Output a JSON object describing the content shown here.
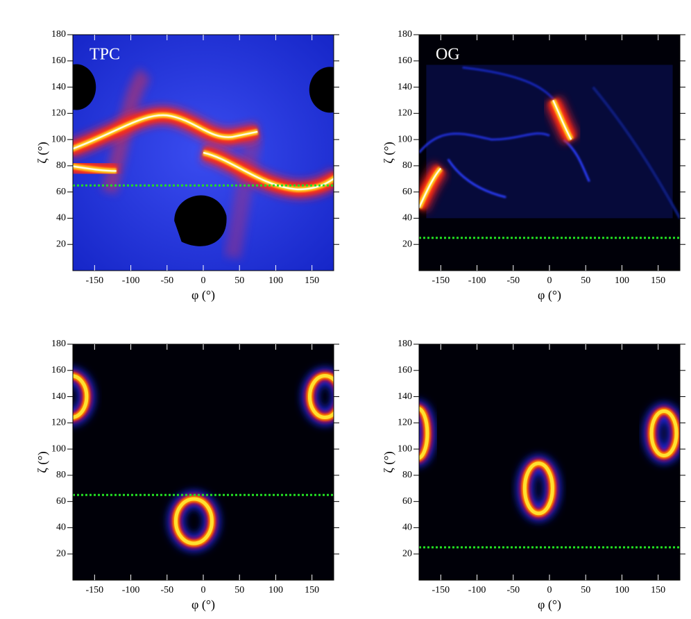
{
  "chart_data": [
    {
      "type": "heatmap",
      "panel_label": "TPC",
      "xlabel": "φ (°)",
      "ylabel": "ζ (°)",
      "xlim": [
        -180,
        180
      ],
      "ylim": [
        0,
        180
      ],
      "xticks": [
        -150,
        -100,
        -50,
        0,
        50,
        100,
        150
      ],
      "yticks": [
        20,
        40,
        60,
        80,
        100,
        120,
        140,
        160,
        180
      ],
      "reference_line": 65,
      "reference_color": "#22e022"
    },
    {
      "type": "heatmap",
      "panel_label": "OG",
      "xlabel": "φ (°)",
      "ylabel": "ζ (°)",
      "xlim": [
        -180,
        180
      ],
      "ylim": [
        0,
        180
      ],
      "xticks": [
        -150,
        -100,
        -50,
        0,
        50,
        100,
        150
      ],
      "yticks": [
        20,
        40,
        60,
        80,
        100,
        120,
        140,
        160,
        180
      ],
      "reference_line": 25,
      "reference_color": "#22e022"
    },
    {
      "type": "heatmap",
      "xlabel": "φ (°)",
      "ylabel": "ζ (°)",
      "xlim": [
        -180,
        180
      ],
      "ylim": [
        0,
        180
      ],
      "xticks": [
        -150,
        -100,
        -50,
        0,
        50,
        100,
        150
      ],
      "yticks": [
        20,
        40,
        60,
        80,
        100,
        120,
        140,
        160,
        180
      ],
      "reference_line": 65,
      "reference_color": "#22e022"
    },
    {
      "type": "heatmap",
      "xlabel": "φ (°)",
      "ylabel": "ζ (°)",
      "xlim": [
        -180,
        180
      ],
      "ylim": [
        0,
        180
      ],
      "xticks": [
        -150,
        -100,
        -50,
        0,
        50,
        100,
        150
      ],
      "yticks": [
        20,
        40,
        60,
        80,
        100,
        120,
        140,
        160,
        180
      ],
      "reference_line": 25,
      "reference_color": "#22e022"
    }
  ]
}
